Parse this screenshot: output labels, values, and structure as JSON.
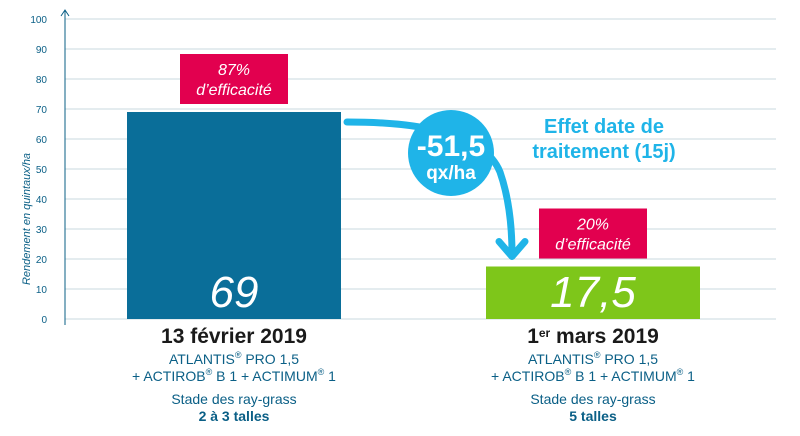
{
  "chart_data": {
    "type": "bar",
    "ylabel": "Rendement en quintaux/ha",
    "ylim": [
      0,
      100
    ],
    "yticks": [
      0,
      10,
      20,
      30,
      40,
      50,
      60,
      70,
      80,
      90,
      100
    ],
    "grid": true,
    "bars": [
      {
        "value": 69,
        "value_label": "69",
        "color": "#0a6e99",
        "badge": {
          "line1": "87%",
          "line2": "d’efficacité",
          "color": "#e2004f"
        },
        "date_prefix": "13 février 2019",
        "date_sup": "",
        "date_suffix": "",
        "product_line1": "ATLANTIS",
        "product_line1_sup": "®",
        "product_line1_rest": " PRO 1,5",
        "product_line2_a": "+ ACTIROB",
        "product_line2_sup1": "®",
        "product_line2_b": " B 1 + ACTIMUM",
        "product_line2_sup2": "®",
        "product_line2_c": " 1",
        "stage_line": "Stade des ray-grass",
        "stage_value": "2 à 3 talles"
      },
      {
        "value": 17.5,
        "value_label": "17,5",
        "color": "#7ec61a",
        "badge": {
          "line1": "20%",
          "line2": "d’efficacité",
          "color": "#e2004f"
        },
        "date_prefix": "1",
        "date_sup": "er",
        "date_suffix": " mars 2019",
        "product_line1": "ATLANTIS",
        "product_line1_sup": "®",
        "product_line1_rest": " PRO 1,5",
        "product_line2_a": "+ ACTIROB",
        "product_line2_sup1": "®",
        "product_line2_b": " B 1 + ACTIMUM",
        "product_line2_sup2": "®",
        "product_line2_c": " 1",
        "stage_line": "Stade des ray-grass",
        "stage_value": "5 talles"
      }
    ],
    "difference": {
      "value_label": "-51,5",
      "unit": "qx/ha",
      "color": "#1fb4e8"
    },
    "annotation": {
      "line1": "Effet date de",
      "line2": "traitement (15j)"
    }
  }
}
